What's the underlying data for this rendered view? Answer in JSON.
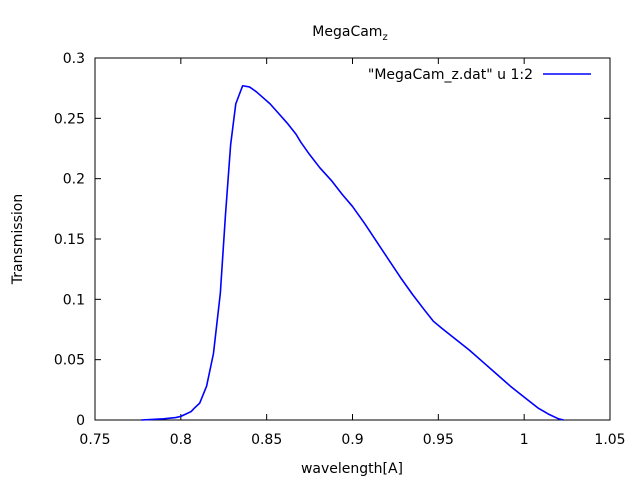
{
  "chart_data": {
    "type": "line",
    "title": "MegaCam",
    "title_subscript": "z",
    "xlabel": "wavelength[A]",
    "ylabel": "Transmission",
    "xlim": [
      0.75,
      1.05
    ],
    "ylim": [
      0,
      0.3
    ],
    "xticks": [
      0.75,
      0.8,
      0.85,
      0.9,
      0.95,
      1,
      1.05
    ],
    "yticks": [
      0,
      0.05,
      0.1,
      0.15,
      0.2,
      0.25,
      0.3
    ],
    "xtick_labels": [
      "0.75",
      "0.8",
      "0.85",
      "0.9",
      "0.95",
      "1",
      "1.05"
    ],
    "ytick_labels": [
      "0",
      "0.05",
      "0.1",
      "0.15",
      "0.2",
      "0.25",
      "0.3"
    ],
    "grid": false,
    "legend_position": "top-right",
    "series": [
      {
        "name": "\"MegaCam_z.dat\" u 1:2",
        "color": "#0000ff",
        "x": [
          0.777,
          0.79,
          0.797,
          0.8,
          0.803,
          0.806,
          0.808,
          0.811,
          0.815,
          0.819,
          0.823,
          0.826,
          0.829,
          0.832,
          0.836,
          0.84,
          0.844,
          0.848,
          0.852,
          0.857,
          0.862,
          0.867,
          0.87,
          0.875,
          0.881,
          0.888,
          0.894,
          0.9,
          0.907,
          0.914,
          0.921,
          0.928,
          0.935,
          0.942,
          0.947,
          0.952,
          0.96,
          0.968,
          0.976,
          0.984,
          0.992,
          1.0,
          1.008,
          1.014,
          1.02,
          1.023
        ],
        "y": [
          0.0,
          0.001,
          0.002,
          0.003,
          0.005,
          0.007,
          0.01,
          0.014,
          0.028,
          0.055,
          0.105,
          0.17,
          0.228,
          0.262,
          0.277,
          0.276,
          0.272,
          0.267,
          0.262,
          0.254,
          0.246,
          0.237,
          0.23,
          0.22,
          0.209,
          0.198,
          0.187,
          0.177,
          0.163,
          0.148,
          0.133,
          0.118,
          0.104,
          0.091,
          0.082,
          0.076,
          0.067,
          0.058,
          0.048,
          0.038,
          0.028,
          0.019,
          0.01,
          0.005,
          0.001,
          0.0
        ]
      }
    ]
  }
}
